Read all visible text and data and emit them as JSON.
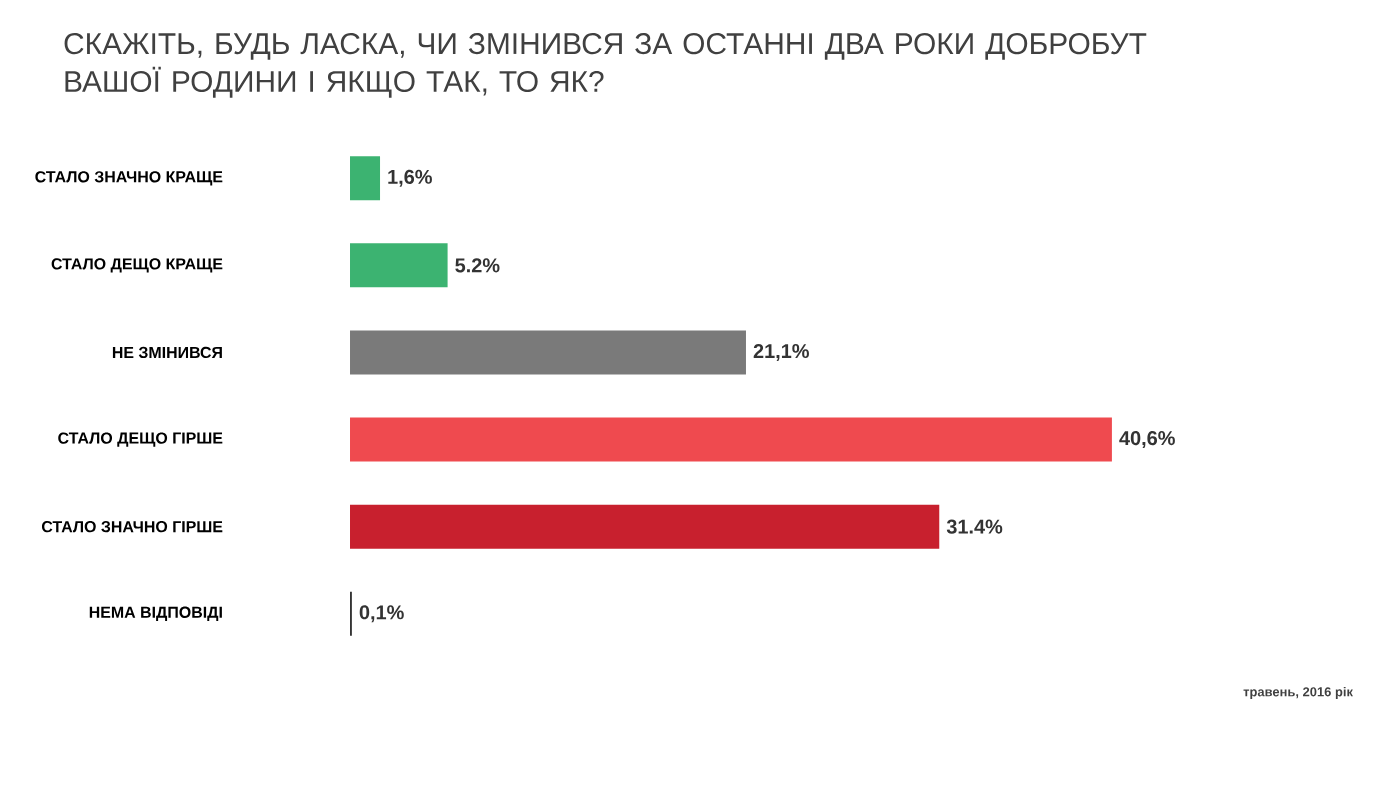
{
  "chart_data": {
    "type": "bar",
    "orientation": "horizontal",
    "title": "СКАЖІТЬ, БУДЬ ЛАСКА, ЧИ ЗМІНИВСЯ ЗА ОСТАННІ ДВА РОКИ ДОБРОБУТ ВАШОЇ РОДИНИ І ЯКЩО ТАК, ТО ЯК?",
    "categories": [
      "СТАЛО ЗНАЧНО КРАЩЕ",
      "СТАЛО ДЕЩО КРАЩЕ",
      "НЕ ЗМІНИВСЯ",
      "СТАЛО ДЕЩО ГІРШЕ",
      "СТАЛО ЗНАЧНО ГІРШЕ",
      "НЕМА ВІДПОВІДІ"
    ],
    "values": [
      1.6,
      5.2,
      21.1,
      40.6,
      31.4,
      0.1
    ],
    "value_labels": [
      "1,6%",
      "5.2%",
      "21,1%",
      "40,6%",
      "31.4%",
      "0,1%"
    ],
    "colors": [
      "#3cb371",
      "#3cb371",
      "#7a7a7a",
      "#ef4a4f",
      "#c8202e",
      "#333333"
    ],
    "annotations": [
      "травень, 2016 рік"
    ]
  }
}
